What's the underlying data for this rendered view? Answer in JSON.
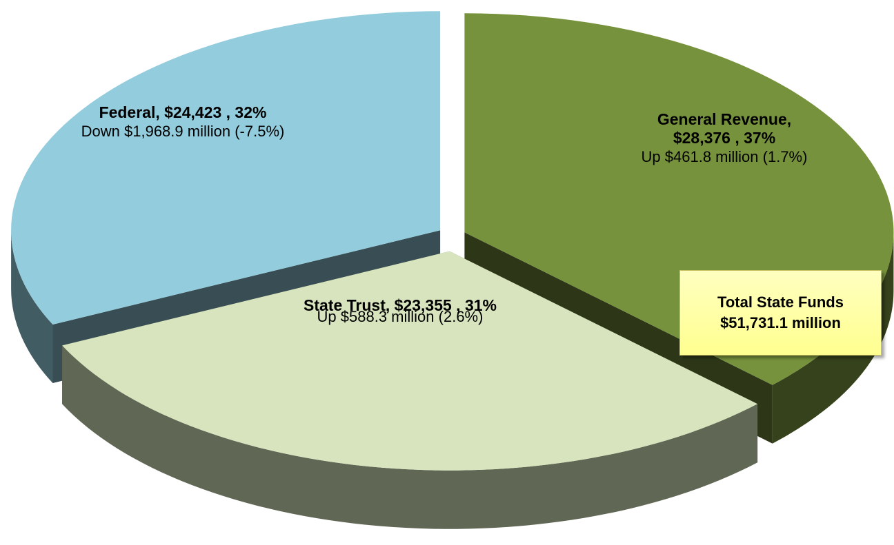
{
  "chart_data": {
    "type": "pie3d",
    "value_labels": [
      "General Revenue, $28,376 , 37%",
      "State Trust, $23,355 , 31%",
      "Federal, $24,423 , 32%"
    ],
    "values": [
      28376,
      23355,
      24423
    ],
    "colors": [
      "#77923c",
      "#d7e4bd",
      "#93cddd"
    ],
    "annotations": [
      "Up $461.8 million (1.7%)",
      "Up $588.3 million (2.6%)",
      "Down $1,968.9 million (-7.5%)"
    ],
    "callout": {
      "title": "Total State Funds",
      "value": "$51,731.1 million"
    }
  }
}
